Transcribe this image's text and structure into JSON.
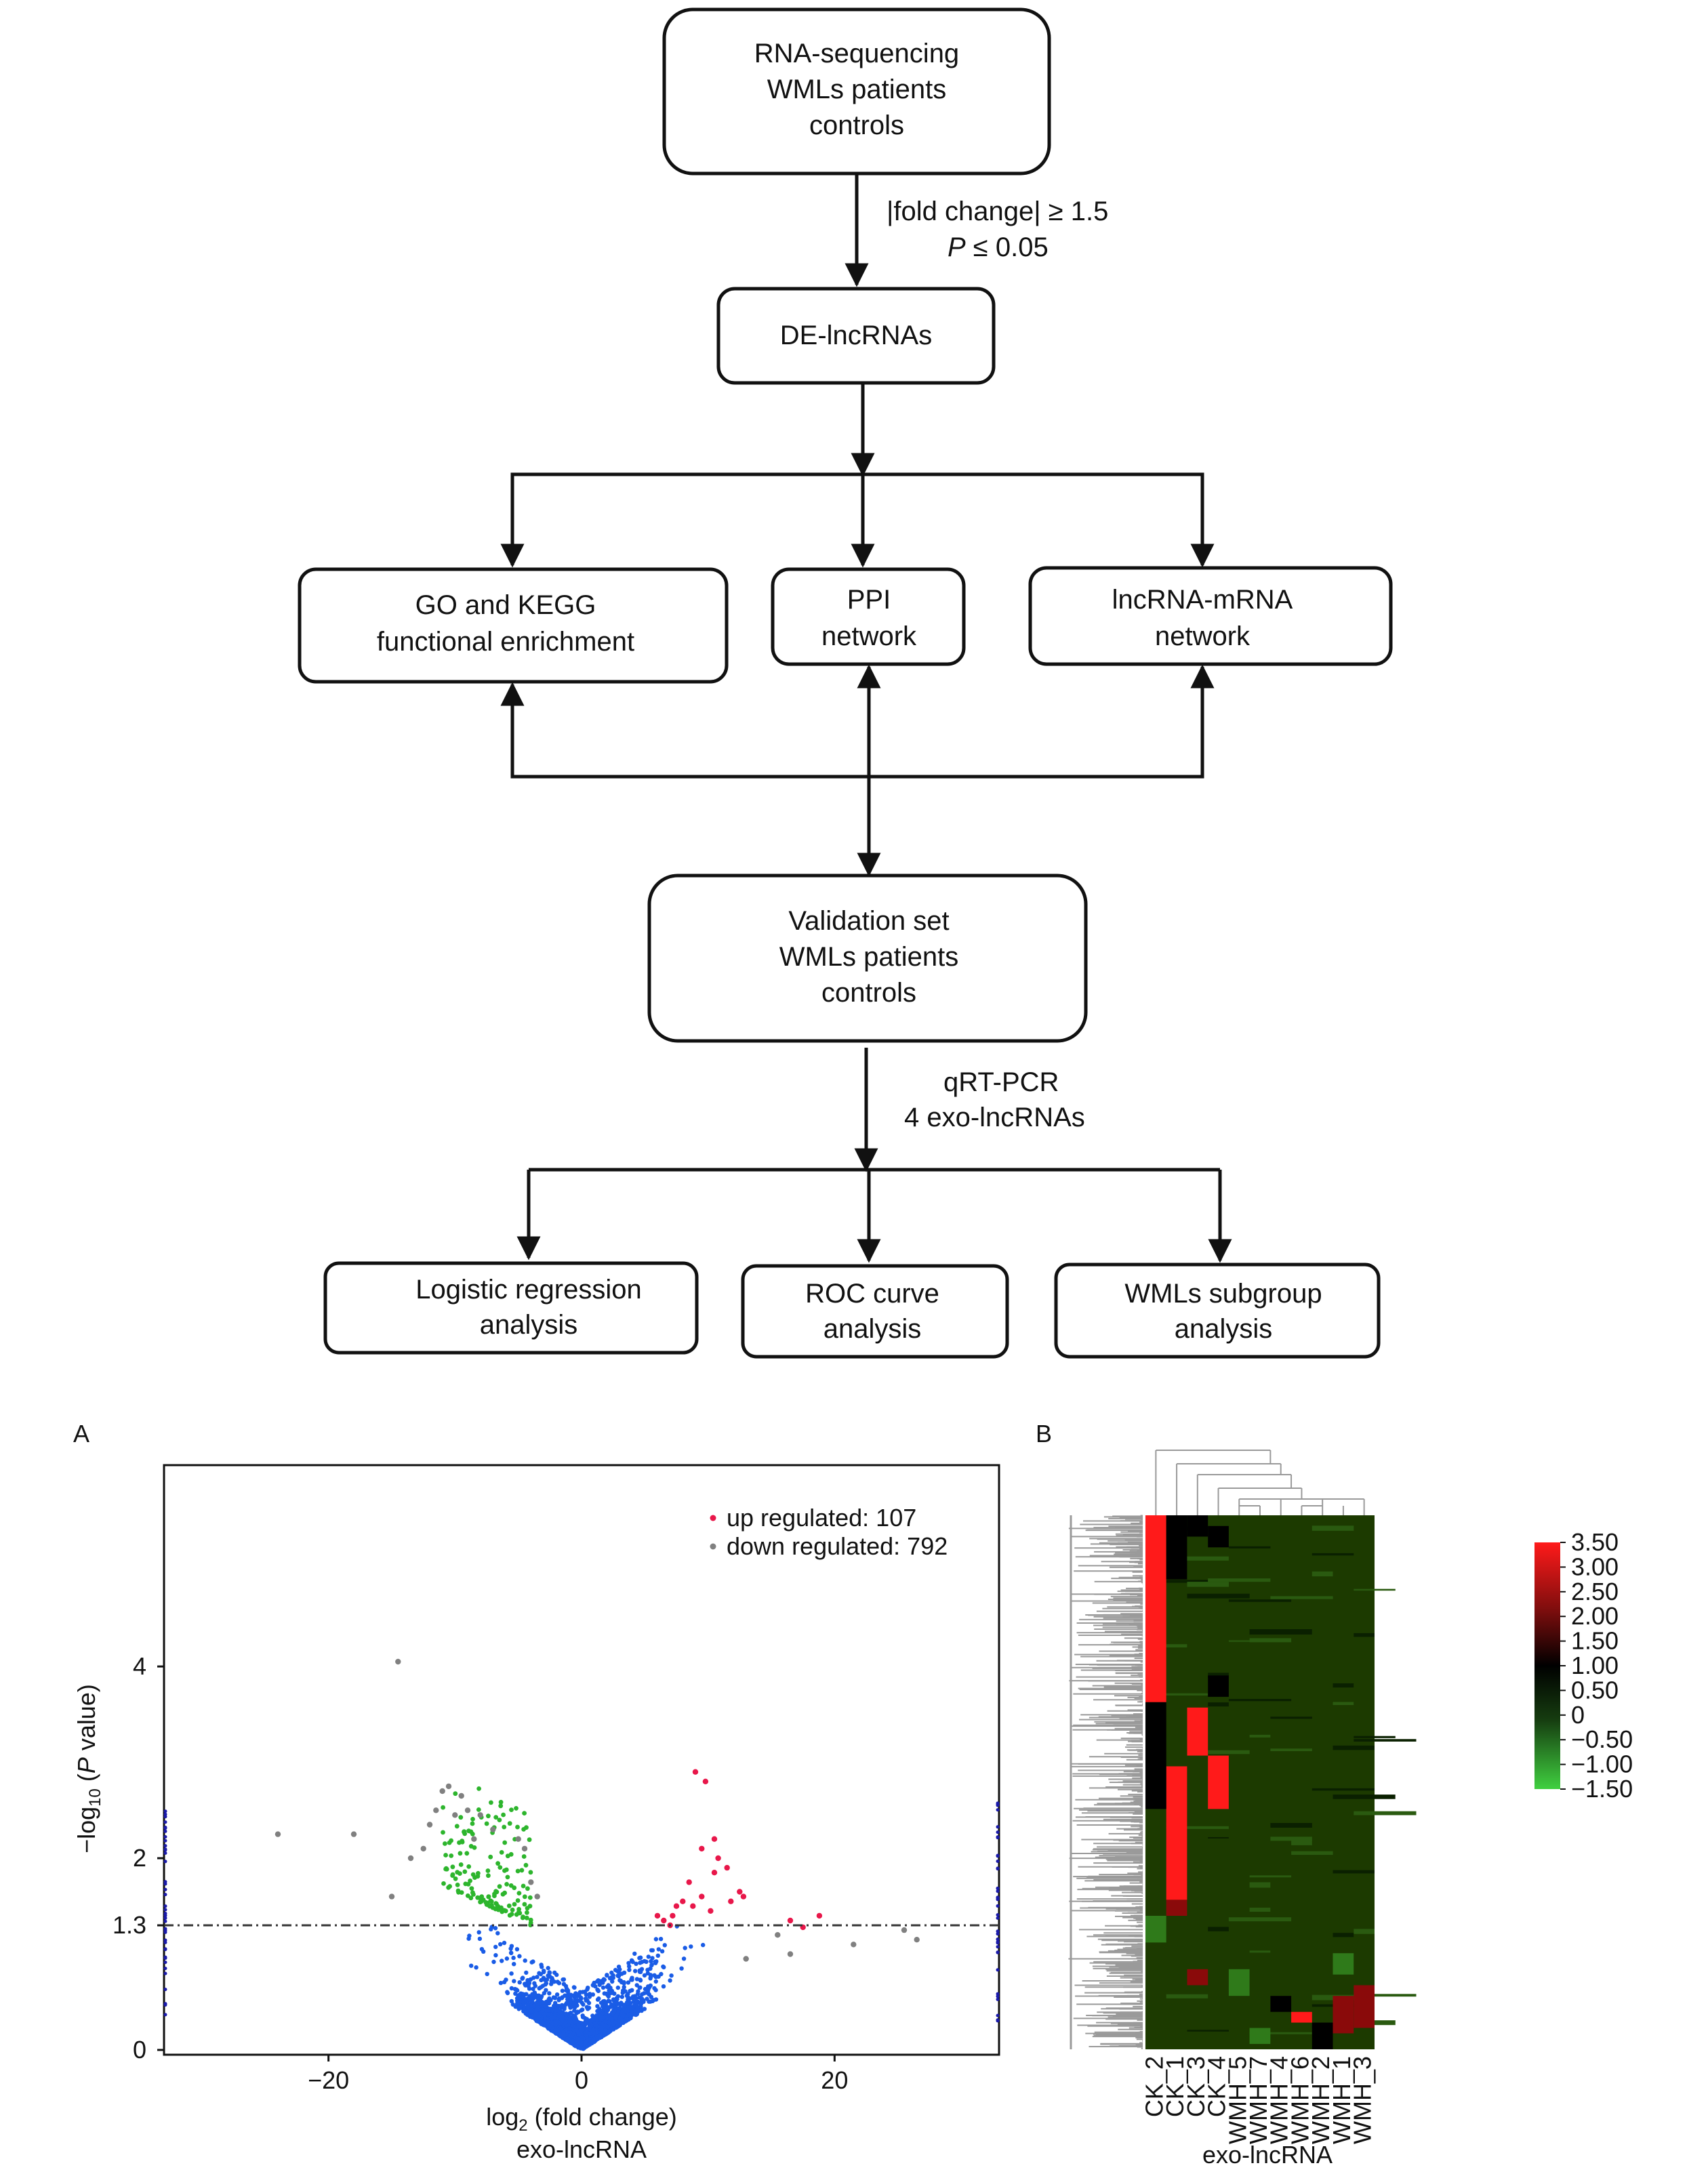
{
  "flowchart": {
    "box_sequencing": [
      "RNA-sequencing",
      "WMLs patients",
      "controls"
    ],
    "criteria_line1": "|fold change| ≥ 1.5",
    "criteria_line2_italic": "P",
    "criteria_line2_rest": " ≤ 0.05",
    "box_de": "DE-lncRNAs",
    "box_go": [
      "GO and KEGG",
      "functional enrichment"
    ],
    "box_ppi": [
      "PPI",
      "network"
    ],
    "box_lnc": [
      "lncRNA-mRNA",
      "network"
    ],
    "box_validation": [
      "Validation set",
      "WMLs patients",
      "controls"
    ],
    "qrt_line1": "qRT-PCR",
    "qrt_line2": "4 exo-lncRNAs",
    "box_logistic": [
      "Logistic regression",
      "analysis"
    ],
    "box_roc": [
      "ROC curve",
      "analysis"
    ],
    "box_subgroup": [
      "WMLs subgroup",
      "analysis"
    ]
  },
  "panels": {
    "a": "A",
    "b": "B"
  },
  "chart_data": [
    {
      "type": "scatter",
      "panel": "A",
      "xlabel_main": "log",
      "xlabel_sub": "2",
      "xlabel_rest": " (fold change)",
      "xlabel_line2": "exo-lncRNA",
      "ylabel_prefix": "−log",
      "ylabel_sub": "10",
      "ylabel_open": " (",
      "ylabel_italic": "P",
      "ylabel_close": " value)",
      "xlim": [
        -33,
        33
      ],
      "ylim": [
        -0.05,
        6.1
      ],
      "x_ticks": [
        -20,
        0,
        20
      ],
      "x_tick_labels": [
        "−20",
        "0",
        "20"
      ],
      "y_ticks": [
        0,
        1.3,
        2,
        4
      ],
      "y_tick_labels": [
        "0",
        "1.3",
        "2",
        "4"
      ],
      "threshold_y": 1.3,
      "legend": {
        "position": "top-right",
        "entries": [
          {
            "label": "up regulated: 107",
            "color": "#e8174a"
          },
          {
            "label": "down regulated: 792",
            "color": "#808080"
          }
        ]
      },
      "colors": {
        "up": "#e8174a",
        "down": "#808080",
        "green": "#2db52d",
        "blue": "#1a5ce6",
        "edge": "#1a1aaa"
      },
      "series": [
        {
          "name": "up regulated: 107",
          "color": "#e8174a",
          "points": [
            [
              9,
              2.9
            ],
            [
              9.8,
              2.8
            ],
            [
              10.5,
              2.2
            ],
            [
              9.5,
              2.1
            ],
            [
              10.8,
              2.0
            ],
            [
              11.5,
              1.9
            ],
            [
              12.5,
              1.65
            ],
            [
              10.5,
              1.85
            ],
            [
              8.5,
              1.75
            ],
            [
              8.8,
              1.5
            ],
            [
              8,
              1.55
            ],
            [
              7.5,
              1.5
            ],
            [
              7.2,
              1.4
            ],
            [
              6.5,
              1.35
            ],
            [
              6,
              1.4
            ],
            [
              9.5,
              1.6
            ],
            [
              10.2,
              1.45
            ],
            [
              11.8,
              1.55
            ],
            [
              12.8,
              1.6
            ],
            [
              16.5,
              1.35
            ],
            [
              18.8,
              1.4
            ],
            [
              17.5,
              1.28
            ],
            [
              7,
              1.3
            ]
          ]
        },
        {
          "name": "down regulated: 792",
          "color": "#808080",
          "points": [
            [
              -14.5,
              4.05
            ],
            [
              -24,
              2.25
            ],
            [
              -18,
              2.25
            ],
            [
              -11,
              2.7
            ],
            [
              -10.5,
              2.75
            ],
            [
              -9.5,
              2.65
            ],
            [
              -12.5,
              2.1
            ],
            [
              -13.5,
              2.0
            ],
            [
              -9,
              2.5
            ],
            [
              -12,
              2.35
            ],
            [
              -8,
              2.45
            ],
            [
              -7,
              2.3
            ],
            [
              -5,
              2.2
            ],
            [
              -4.5,
              2.1
            ],
            [
              -3.5,
              1.6
            ],
            [
              -4,
              1.75
            ],
            [
              -11.5,
              2.5
            ],
            [
              -15,
              1.6
            ],
            [
              -10,
              2.45
            ],
            [
              -8.5,
              2.2
            ],
            [
              21.5,
              1.1
            ],
            [
              25.5,
              1.25
            ],
            [
              16.5,
              1.0
            ],
            [
              13,
              0.95
            ],
            [
              15.5,
              1.2
            ],
            [
              26.5,
              1.15
            ]
          ]
        }
      ]
    },
    {
      "type": "heatmap",
      "panel": "B",
      "xlabel": "exo-lncRNA",
      "columns": [
        "CK_2",
        "CK_1",
        "CK_3",
        "CK_4",
        "WMH_5",
        "WMH_7",
        "WMH_4",
        "WMH_6",
        "WMH_2",
        "WMH_1",
        "WMH_3"
      ],
      "colorbar": {
        "ticks": [
          3.5,
          3.0,
          2.5,
          2.0,
          1.5,
          1.0,
          0.5,
          0,
          -0.5,
          -1.0,
          -1.5
        ],
        "labels": [
          "3.50",
          "3.00",
          "2.50",
          "2.00",
          "1.50",
          "1.00",
          "0.50",
          "0",
          "−0.50",
          "−1.00",
          "−1.50"
        ],
        "range": [
          -1.5,
          3.5
        ],
        "colors": {
          "high": "#ff1a1a",
          "mid": "#000000",
          "background": "#1c3a00",
          "low": "#33cc33"
        }
      }
    }
  ]
}
